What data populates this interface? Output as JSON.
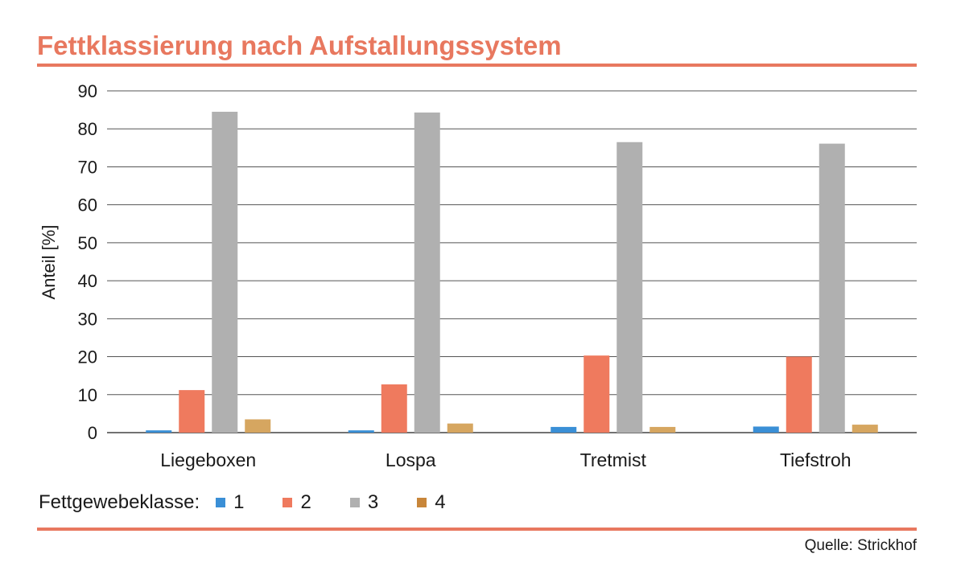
{
  "chart_data": {
    "type": "bar",
    "title": "Fettklassierung nach Aufstallungssystem",
    "ylabel": "Anteil [%]",
    "xlabel": "",
    "ylim": [
      0,
      90
    ],
    "yticks": [
      0,
      10,
      20,
      30,
      40,
      50,
      60,
      70,
      80,
      90
    ],
    "categories": [
      "Liegeboxen",
      "Lospa",
      "Tretmist",
      "Tiefstroh"
    ],
    "legend_title": "Fettgewebeklasse:",
    "legend_position": "bottom-left",
    "grid": true,
    "series": [
      {
        "name": "1",
        "color": "#3a8fd6",
        "values": [
          0.6,
          0.6,
          1.5,
          1.6
        ]
      },
      {
        "name": "2",
        "color": "#ef7a5e",
        "values": [
          11.2,
          12.7,
          20.3,
          20.0
        ]
      },
      {
        "name": "3",
        "color": "#b0b0b0",
        "values": [
          84.5,
          84.3,
          76.5,
          76.1
        ]
      },
      {
        "name": "4",
        "color": "#d6a660",
        "values": [
          3.5,
          2.4,
          1.5,
          2.1
        ]
      }
    ],
    "legend_colors": [
      "#3a8fd6",
      "#ef7a5e",
      "#b0b0b0",
      "#c8863a"
    ]
  },
  "source": "Quelle: Strickhof"
}
